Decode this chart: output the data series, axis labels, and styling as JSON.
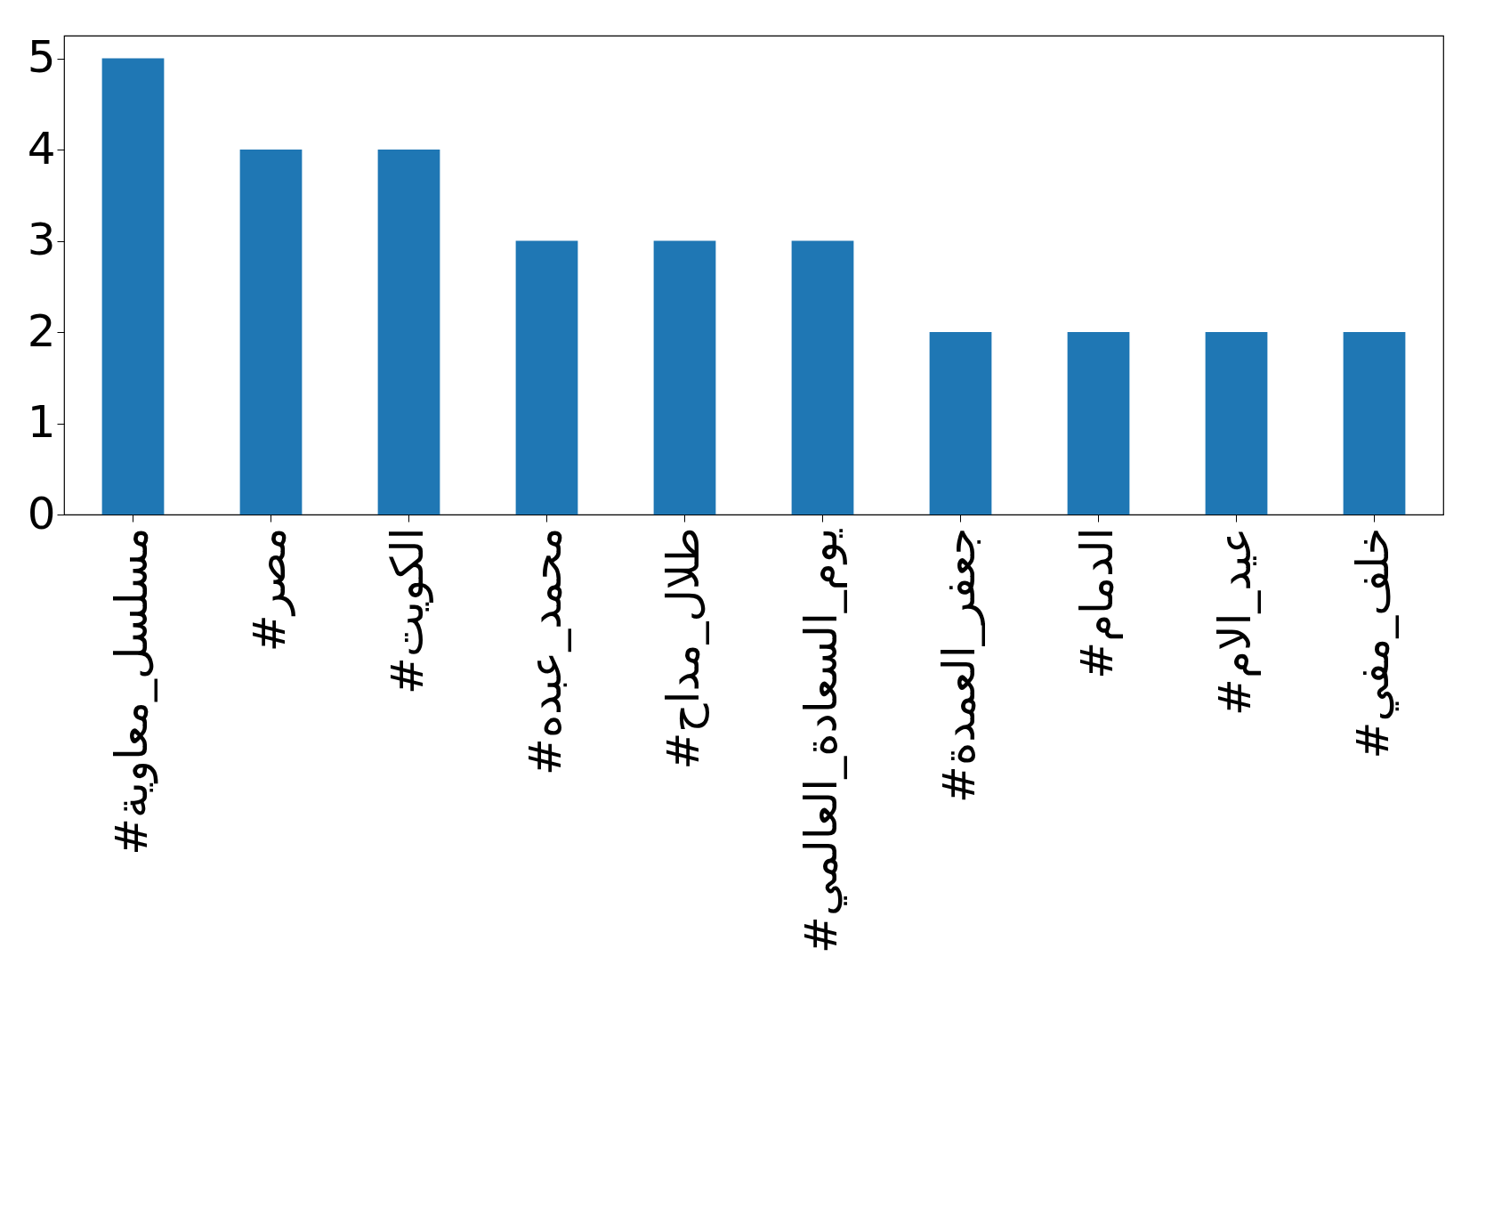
{
  "chart_data": {
    "type": "bar",
    "categories": [
      "#مسلسل_معاوية",
      "#مصر",
      "#الكويت",
      "#محمد_عبده",
      "#طلال_مداح",
      "#يوم_السعادة_العالمي",
      "#جعفر_العمدة",
      "#الدمام",
      "#عيد_الام",
      "#خلف_مفي"
    ],
    "values": [
      5,
      4,
      4,
      3,
      3,
      3,
      2,
      2,
      2,
      2
    ],
    "color": "#1f77b4",
    "ylim": [
      0,
      5.25
    ],
    "yticks": [
      0,
      1,
      2,
      3,
      4,
      5
    ],
    "grid": false
  }
}
